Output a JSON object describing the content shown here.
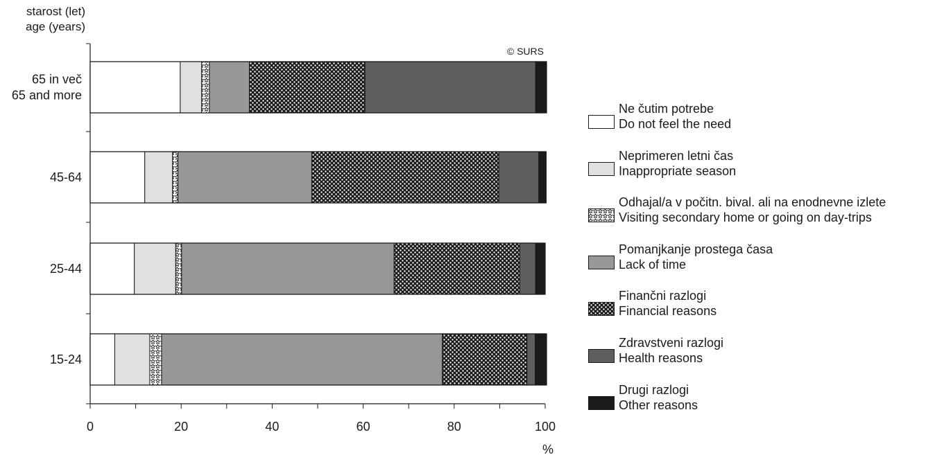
{
  "chart_data": {
    "type": "bar",
    "orientation": "horizontal",
    "stacked": true,
    "copyright": "© SURS",
    "ylabel": [
      "starost (let)",
      "age (years)"
    ],
    "xlabel": "%",
    "xlim": [
      0,
      100
    ],
    "xticks": [
      0,
      20,
      40,
      60,
      80,
      100
    ],
    "categories": [
      [
        "65 in več",
        "65 and more"
      ],
      [
        "45-64"
      ],
      [
        "25-44"
      ],
      [
        "15-24"
      ]
    ],
    "series": [
      {
        "name": [
          "Ne čutim potrebe",
          "Do not feel the need"
        ],
        "pattern": "white",
        "values": [
          19.8,
          12.0,
          9.7,
          5.4
        ]
      },
      {
        "name": [
          "Neprimeren letni čas",
          "Inappropriate season"
        ],
        "pattern": "lightgray",
        "values": [
          4.7,
          6.1,
          9.1,
          7.7
        ]
      },
      {
        "name": [
          "Odhajal/a v počitn. bival. ali na enodnevne izlete",
          "Visiting secondary home or going on day-trips"
        ],
        "pattern": "stars",
        "values": [
          1.7,
          1.2,
          1.3,
          2.6
        ]
      },
      {
        "name": [
          "Pomanjkanje prostega časa",
          "Lack of time"
        ],
        "pattern": "midgray",
        "values": [
          8.8,
          29.4,
          46.7,
          61.7
        ]
      },
      {
        "name": [
          "Finančni razlogi",
          "Financial reasons"
        ],
        "pattern": "checker",
        "values": [
          25.4,
          41.1,
          27.6,
          18.6
        ]
      },
      {
        "name": [
          "Zdravstveni razlogi",
          "Health reasons"
        ],
        "pattern": "darkgray",
        "values": [
          37.5,
          8.8,
          3.5,
          1.8
        ]
      },
      {
        "name": [
          "Drugi razlogi",
          "Other reasons"
        ],
        "pattern": "black",
        "values": [
          2.4,
          1.6,
          2.1,
          2.5
        ]
      }
    ],
    "colors": {
      "white": "#ffffff",
      "lightgray": "#e0e0e0",
      "midgray": "#979797",
      "darkgray": "#5e5e5e",
      "black": "#1a1a1a"
    },
    "legend_position": "right",
    "grid": false
  }
}
